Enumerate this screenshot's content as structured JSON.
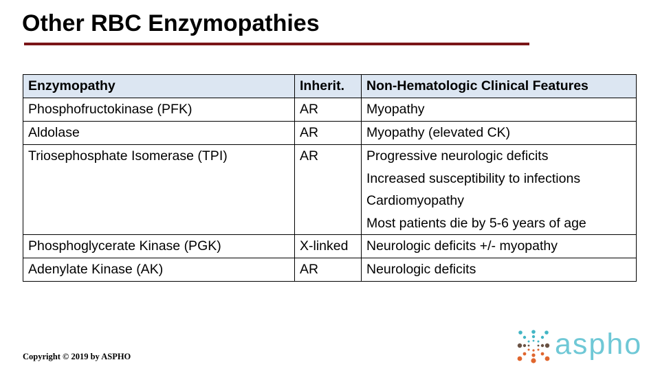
{
  "slide": {
    "title": "Other RBC Enzymopathies",
    "copyright": "Copyright © 2019 by ASPHO",
    "underline_color": "#7a1517"
  },
  "table": {
    "header_bg": "#dce6f2",
    "border_color": "#000000",
    "columns": [
      "Enzymopathy",
      "Inherit.",
      "Non-Hematologic Clinical Features"
    ],
    "rows": [
      {
        "enzymopathy": "Phosphofructokinase (PFK)",
        "inherit": "AR",
        "features": [
          "Myopathy"
        ]
      },
      {
        "enzymopathy": "Aldolase",
        "inherit": "AR",
        "features": [
          "Myopathy (elevated CK)"
        ]
      },
      {
        "enzymopathy": "Triosephosphate Isomerase (TPI)",
        "inherit": "AR",
        "features": [
          "Progressive neurologic deficits",
          "Increased susceptibility to infections",
          "Cardiomyopathy",
          "Most patients die by 5-6 years of age"
        ]
      },
      {
        "enzymopathy": "Phosphoglycerate Kinase (PGK)",
        "inherit": "X-linked",
        "features": [
          "Neurologic deficits +/- myopathy"
        ]
      },
      {
        "enzymopathy": "Adenylate Kinase (AK)",
        "inherit": "AR",
        "features": [
          "Neurologic deficits"
        ]
      }
    ]
  },
  "logo": {
    "text": "aspho",
    "text_color": "#6fc8d6",
    "dot_colors": {
      "teal": "#43b6c5",
      "brown": "#6a5244",
      "orange": "#e0662e"
    }
  }
}
